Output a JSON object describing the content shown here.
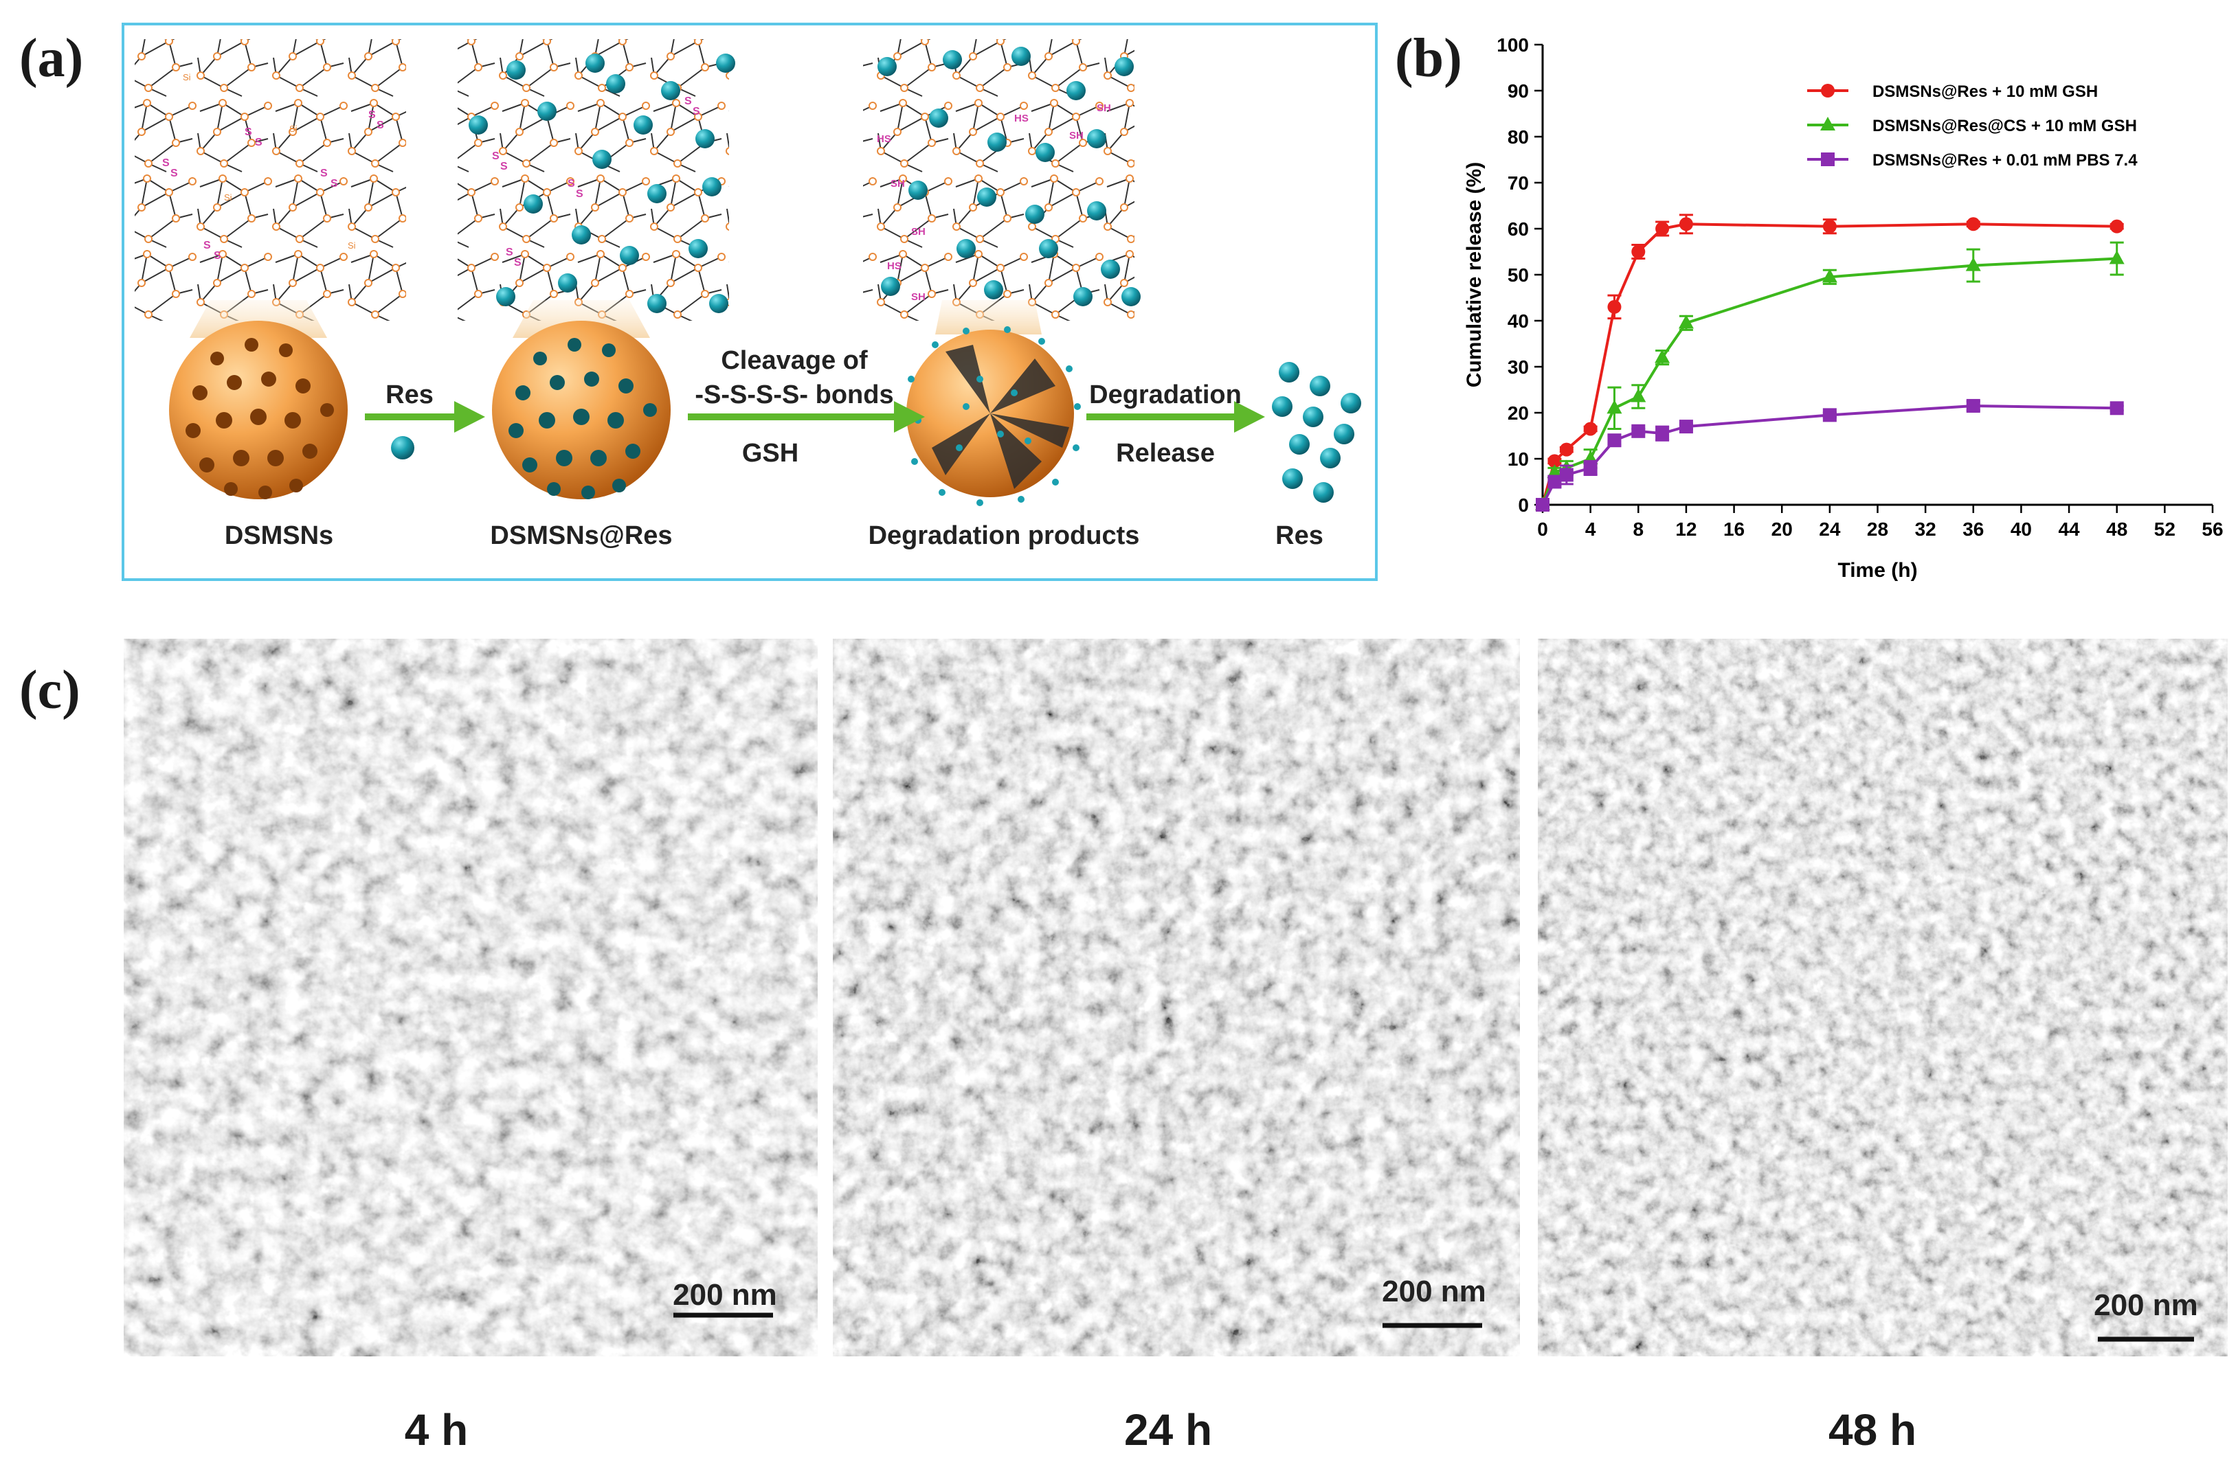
{
  "panels": {
    "a": "(a)",
    "b": "(b)",
    "c": "(c)"
  },
  "schematic": {
    "stage_labels": [
      "DSMSNs",
      "DSMSNs@Res",
      "Degradation products",
      "Res"
    ],
    "arrow1": {
      "top": "Res"
    },
    "arrow2": {
      "top_line1": "Cleavage of",
      "top_line2": "-S-S-S-S- bonds",
      "bottom": "GSH"
    },
    "arrow3": {
      "top": "Degradation",
      "bottom": "Release"
    },
    "atoms": {
      "si": "Si",
      "o": "O",
      "s": "S",
      "sh": "SH",
      "hs": "HS"
    },
    "colors": {
      "frame": "#5bc7e8",
      "sphere": "#ee9540",
      "drug": "#1aa0b0",
      "arrow": "#5fb82c",
      "sulfur": "#d040a8"
    }
  },
  "chart_data": {
    "type": "line",
    "title": "",
    "xlabel": "Time (h)",
    "ylabel": "Cumulative release (%)",
    "xlim": [
      0,
      56
    ],
    "ylim": [
      0,
      100
    ],
    "xticks": [
      "0",
      "4",
      "8",
      "12",
      "16",
      "20",
      "24",
      "28",
      "32",
      "36",
      "40",
      "44",
      "48",
      "52",
      "56"
    ],
    "yticks": [
      "0",
      "10",
      "20",
      "30",
      "40",
      "50",
      "60",
      "70",
      "80",
      "90",
      "100"
    ],
    "legend_position": "top-right",
    "series": [
      {
        "name": "DSMSNs@Res + 10 mM GSH",
        "color": "#e8201c",
        "marker": "circle",
        "x": [
          0,
          1,
          2,
          4,
          6,
          8,
          10,
          12,
          24,
          36,
          48
        ],
        "y": [
          0,
          9.5,
          12,
          16.5,
          43,
          55,
          60,
          61,
          60.5,
          61,
          60.5
        ],
        "err": [
          0,
          0.5,
          0.5,
          0.5,
          2.5,
          1.5,
          1.5,
          2,
          1.5,
          0.5,
          0.5
        ]
      },
      {
        "name": "DSMSNs@Res@CS + 10 mM GSH",
        "color": "#3cb81c",
        "marker": "triangle",
        "x": [
          0,
          1,
          2,
          4,
          6,
          8,
          10,
          12,
          24,
          36,
          48
        ],
        "y": [
          0,
          7,
          8,
          10,
          21,
          23.5,
          32,
          39.5,
          49.5,
          52,
          53.5
        ],
        "err": [
          0,
          1,
          1.5,
          2,
          4.5,
          2.5,
          1.5,
          1.5,
          1.5,
          3.5,
          3.5
        ]
      },
      {
        "name": "DSMSNs@Res + 0.01 mM PBS 7.4",
        "color": "#8a2cb0",
        "marker": "square",
        "x": [
          0,
          1,
          2,
          4,
          6,
          8,
          10,
          12,
          24,
          36,
          48
        ],
        "y": [
          0,
          5,
          6.5,
          8,
          14,
          16,
          15.5,
          17,
          19.5,
          21.5,
          21
        ],
        "err": [
          0,
          1,
          2,
          1.5,
          1,
          0.5,
          1.5,
          0.5,
          0.5,
          1,
          0.5
        ]
      }
    ]
  },
  "tem": {
    "scale_bar": "200 nm",
    "labels": [
      "4 h",
      "24 h",
      "48 h"
    ]
  }
}
